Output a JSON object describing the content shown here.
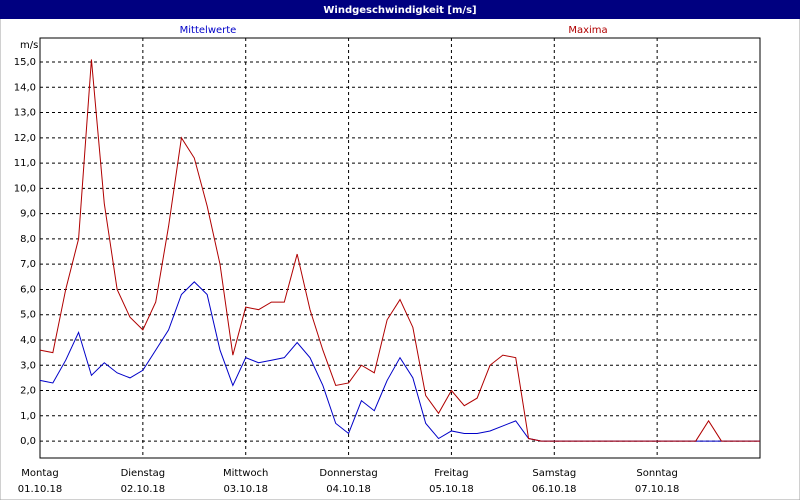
{
  "chart_data": {
    "type": "line",
    "title": "Windgeschwindigkeit [m/s]",
    "y_label": "m/s",
    "xlim": [
      0,
      7
    ],
    "ylim": [
      -0.67,
      15.95
    ],
    "xticks": [
      {
        "value": 0,
        "label": "Montag"
      },
      {
        "value": 1,
        "label": "Dienstag"
      },
      {
        "value": 2,
        "label": "Mittwoch"
      },
      {
        "value": 3,
        "label": "Donnerstag"
      },
      {
        "value": 4,
        "label": "Freitag"
      },
      {
        "value": 5,
        "label": "Samstag"
      },
      {
        "value": 6,
        "label": "Sonntag"
      }
    ],
    "xtick_dates": [
      "01.10.18",
      "02.10.18",
      "03.10.18",
      "04.10.18",
      "05.10.18",
      "06.10.18",
      "07.10.18"
    ],
    "yticks": [
      {
        "value": 0,
        "label": "0,0"
      },
      {
        "value": 1,
        "label": "1,0"
      },
      {
        "value": 2,
        "label": "2,0"
      },
      {
        "value": 3,
        "label": "3,0"
      },
      {
        "value": 4,
        "label": "4,0"
      },
      {
        "value": 5,
        "label": "5,0"
      },
      {
        "value": 6,
        "label": "6,0"
      },
      {
        "value": 7,
        "label": "7,0"
      },
      {
        "value": 8,
        "label": "8,0"
      },
      {
        "value": 9,
        "label": "9,0"
      },
      {
        "value": 10,
        "label": "10,0"
      },
      {
        "value": 11,
        "label": "11,0"
      },
      {
        "value": 12,
        "label": "12,0"
      },
      {
        "value": 13,
        "label": "13,0"
      },
      {
        "value": 14,
        "label": "14,0"
      },
      {
        "value": 15,
        "label": "15,0"
      }
    ],
    "grid": true,
    "x": [
      0,
      0.125,
      0.25,
      0.375,
      0.5,
      0.625,
      0.75,
      0.875,
      1,
      1.125,
      1.25,
      1.375,
      1.5,
      1.625,
      1.75,
      1.875,
      2,
      2.125,
      2.25,
      2.375,
      2.5,
      2.625,
      2.75,
      2.875,
      3,
      3.125,
      3.25,
      3.375,
      3.5,
      3.625,
      3.75,
      3.875,
      4,
      4.125,
      4.25,
      4.375,
      4.5,
      4.625,
      4.75,
      4.875,
      5,
      5.125,
      5.25,
      5.375,
      5.5,
      5.625,
      5.75,
      5.875,
      6,
      6.125,
      6.25,
      6.375,
      6.5,
      6.625,
      6.75,
      6.875,
      7
    ],
    "series": [
      {
        "name": "Mittelwerte",
        "color": "#0000c8",
        "values": [
          2.4,
          2.3,
          3.2,
          4.3,
          2.6,
          3.1,
          2.7,
          2.5,
          2.8,
          3.6,
          4.4,
          5.8,
          6.3,
          5.8,
          3.6,
          2.2,
          3.3,
          3.1,
          3.2,
          3.3,
          3.9,
          3.3,
          2.2,
          0.7,
          0.3,
          1.6,
          1.2,
          2.4,
          3.3,
          2.5,
          0.7,
          0.1,
          0.4,
          0.3,
          0.3,
          0.4,
          0.6,
          0.8,
          0.1,
          0,
          0,
          0,
          0,
          0,
          0,
          0,
          0,
          0,
          0,
          0,
          0,
          0,
          0,
          0,
          0,
          0,
          0
        ]
      },
      {
        "name": "Maxima",
        "color": "#b00000",
        "values": [
          3.6,
          3.5,
          6.0,
          8.0,
          15.1,
          9.4,
          6.0,
          4.9,
          4.4,
          5.5,
          8.5,
          12.0,
          11.2,
          9.3,
          7.0,
          3.4,
          5.3,
          5.2,
          5.5,
          5.5,
          7.4,
          5.2,
          3.6,
          2.2,
          2.3,
          3.0,
          2.7,
          4.8,
          5.6,
          4.5,
          1.8,
          1.1,
          2.0,
          1.4,
          1.7,
          3.0,
          3.4,
          3.3,
          0.1,
          0,
          0,
          0,
          0,
          0,
          0,
          0,
          0,
          0,
          0,
          0,
          0,
          0,
          0.8,
          0,
          0,
          0,
          0
        ]
      }
    ]
  }
}
